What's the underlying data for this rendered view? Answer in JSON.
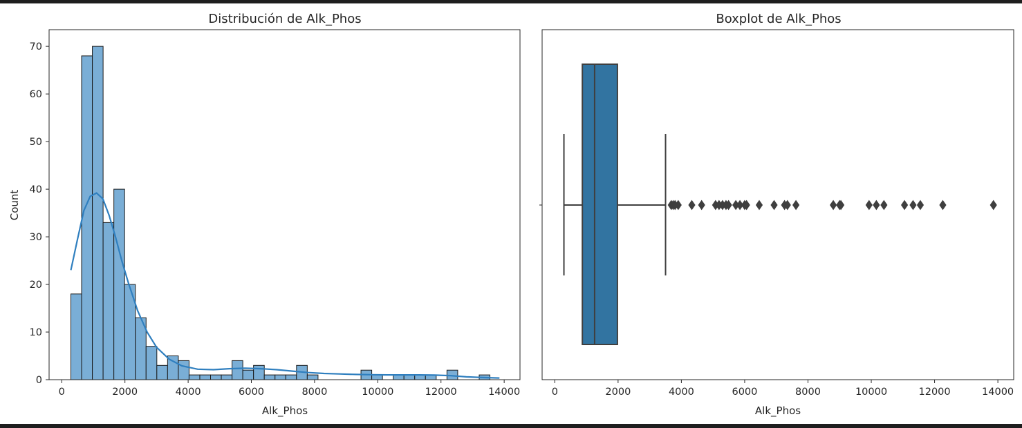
{
  "chart_data": [
    {
      "type": "histogram",
      "title": "Distribución de Alk_Phos",
      "xlabel": "Alk_Phos",
      "ylabel": "Count",
      "xlim": [
        -400,
        14500
      ],
      "ylim": [
        0,
        73.5
      ],
      "xticks": [
        0,
        2000,
        4000,
        6000,
        8000,
        10000,
        12000,
        14000
      ],
      "yticks": [
        0,
        10,
        20,
        30,
        40,
        50,
        60,
        70
      ],
      "bin_start": 289,
      "bin_width": 340,
      "counts": [
        18,
        68,
        70,
        33,
        40,
        20,
        13,
        7,
        3,
        5,
        4,
        1,
        1,
        1,
        1,
        4,
        2,
        3,
        1,
        1,
        1,
        3,
        1,
        0,
        0,
        0,
        0,
        2,
        1,
        0,
        1,
        1,
        1,
        1,
        0,
        2,
        0,
        0,
        1,
        0
      ],
      "kde": {
        "x": [
          289,
          500,
          700,
          900,
          1100,
          1300,
          1500,
          1700,
          1900,
          2100,
          2400,
          2700,
          3000,
          3400,
          3800,
          4300,
          4800,
          5300,
          5800,
          6300,
          6800,
          7300,
          7800,
          8300,
          8800,
          9300,
          9800,
          10300,
          10800,
          11300,
          11800,
          12300,
          12800,
          13300,
          13850
        ],
        "y": [
          23,
          29.5,
          35.5,
          38.5,
          39.2,
          38,
          34.5,
          30,
          25,
          20.5,
          14.5,
          10,
          6.8,
          4.3,
          2.9,
          2.2,
          2.1,
          2.3,
          2.4,
          2.3,
          2.1,
          1.8,
          1.5,
          1.3,
          1.2,
          1.1,
          1.05,
          1.0,
          1.0,
          1.0,
          0.95,
          0.85,
          0.6,
          0.45,
          0.35
        ]
      },
      "bar_color": "#7aaed6",
      "line_color": "#2f7fbf"
    },
    {
      "type": "boxplot",
      "title": "Boxplot de Alk_Phos",
      "xlabel": "Alk_Phos",
      "xlim": [
        -400,
        14500
      ],
      "xticks": [
        0,
        2000,
        4000,
        6000,
        8000,
        10000,
        12000,
        14000
      ],
      "whisker_low": 289,
      "q1": 871,
      "median": 1259,
      "q3": 1980,
      "whisker_high": 3500,
      "outliers": [
        3680,
        3740,
        3800,
        3900,
        4330,
        4640,
        5080,
        5190,
        5300,
        5410,
        5490,
        5720,
        5850,
        6000,
        6060,
        6460,
        6930,
        7260,
        7350,
        7620,
        8800,
        9000,
        9040,
        9930,
        10160,
        10400,
        11050,
        11320,
        11550,
        12260,
        13860
      ],
      "box_color": "#3274a1",
      "line_color": "#3f3f3f"
    }
  ]
}
